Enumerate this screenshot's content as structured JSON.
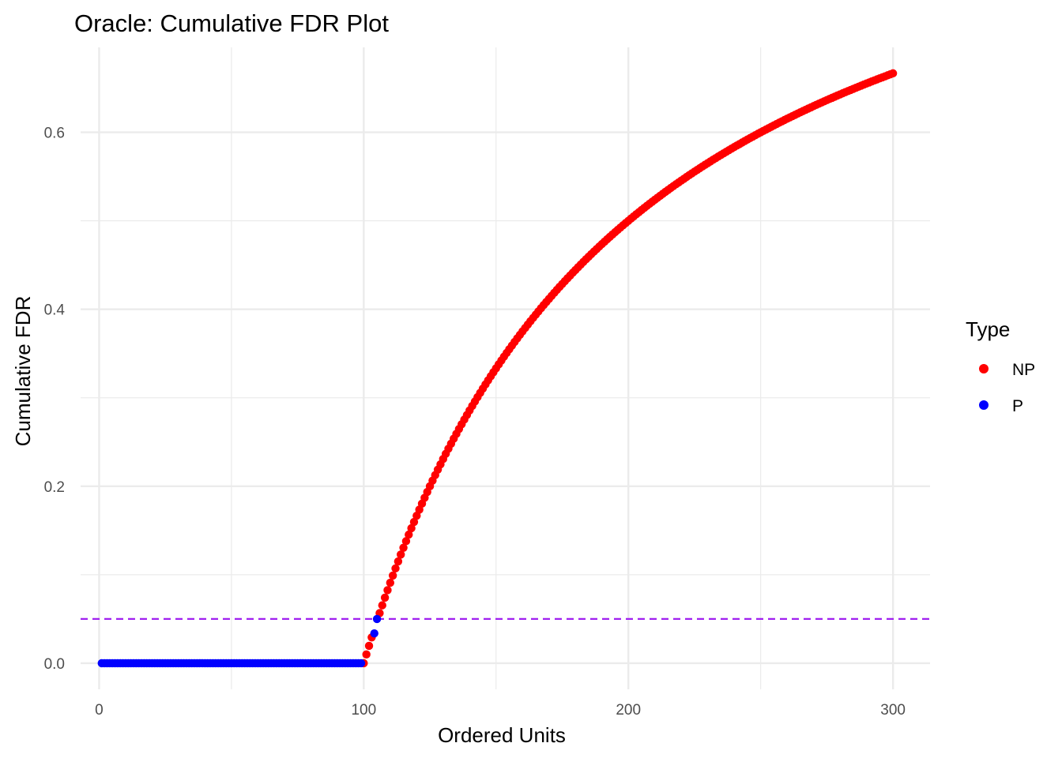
{
  "chart_data": {
    "type": "scatter",
    "title": "Oracle: Cumulative FDR Plot",
    "xlabel": "Ordered Units",
    "ylabel": "Cumulative FDR",
    "xlim": [
      -7,
      314
    ],
    "ylim": [
      -0.0295,
      0.696
    ],
    "x_ticks": [
      0,
      100,
      200,
      300
    ],
    "x_tick_labels": [
      "0",
      "100",
      "200",
      "300"
    ],
    "y_ticks": [
      0.0,
      0.2,
      0.4,
      0.6
    ],
    "y_tick_labels": [
      "0.0",
      "0.2",
      "0.4",
      "0.6"
    ],
    "grid": true,
    "legend": {
      "title": "Type",
      "position": "right"
    },
    "reference_line": {
      "y": 0.05,
      "style": "dashed",
      "color": "#a020f0"
    },
    "series": [
      {
        "name": "NP",
        "color": "#ff0000",
        "points": {
          "type": "range",
          "x_from": 100,
          "x_to": 300,
          "exclude": [
            104,
            105
          ],
          "y_formula": "(x - 100) / x"
        }
      },
      {
        "name": "P",
        "color": "#0000ff",
        "points": {
          "type": "list",
          "values": [
            [
              1,
              0
            ],
            "...",
            [
              99,
              0
            ],
            [
              104,
              0.0337
            ],
            [
              105,
              0.05
            ]
          ],
          "zeros_from": 1,
          "zeros_to": 99
        }
      }
    ]
  }
}
